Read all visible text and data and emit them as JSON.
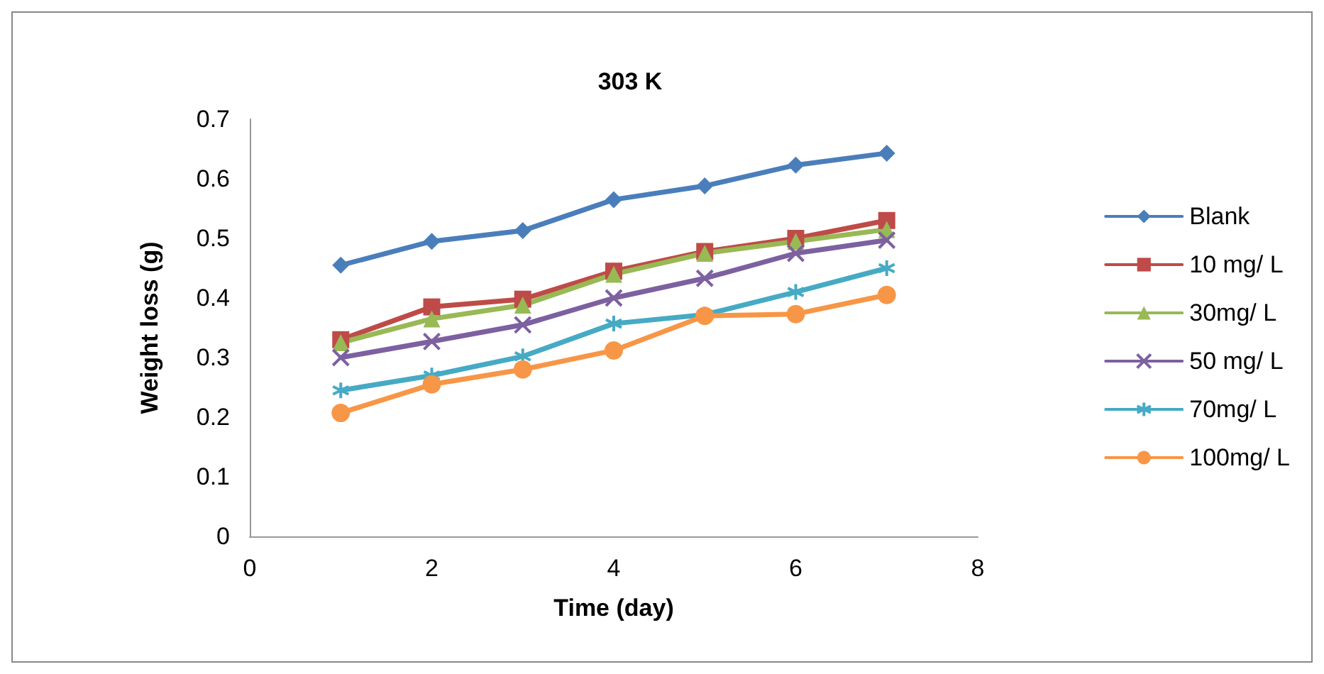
{
  "chart_data": {
    "type": "line",
    "title": "303 K",
    "xlabel": "Time (day)",
    "ylabel": "Weight loss (g)",
    "x": [
      1,
      2,
      3,
      4,
      5,
      6,
      7
    ],
    "series": [
      {
        "name": "Blank",
        "color": "#4a7ebb",
        "marker": "diamond",
        "values": [
          0.455,
          0.495,
          0.513,
          0.565,
          0.588,
          0.623,
          0.643
        ]
      },
      {
        "name": "10 mg/ L",
        "color": "#be4b48",
        "marker": "square",
        "values": [
          0.33,
          0.385,
          0.398,
          0.445,
          0.478,
          0.5,
          0.53
        ]
      },
      {
        "name": "30mg/ L",
        "color": "#98b954",
        "marker": "triangle",
        "values": [
          0.325,
          0.365,
          0.388,
          0.44,
          0.475,
          0.495,
          0.515
        ]
      },
      {
        "name": "50 mg/ L",
        "color": "#7d60a0",
        "marker": "cross",
        "values": [
          0.3,
          0.327,
          0.355,
          0.4,
          0.433,
          0.475,
          0.497
        ]
      },
      {
        "name": "70mg/ L",
        "color": "#46aac5",
        "marker": "cross",
        "values": [
          0.245,
          0.27,
          0.302,
          0.357,
          0.372,
          0.41,
          0.45
        ]
      },
      {
        "name": "100mg/ L",
        "color": "#f79646",
        "marker": "circle",
        "values": [
          0.207,
          0.255,
          0.28,
          0.312,
          0.37,
          0.373,
          0.405
        ]
      }
    ],
    "xlim": [
      0,
      8
    ],
    "xticks": [
      0,
      2,
      4,
      6,
      8
    ],
    "ylim": [
      0,
      0.7
    ],
    "yticks": [
      0,
      0.1,
      0.2,
      0.3,
      0.4,
      0.5,
      0.6,
      0.7
    ],
    "grid": false,
    "legend": "right",
    "line_style": "solid"
  }
}
